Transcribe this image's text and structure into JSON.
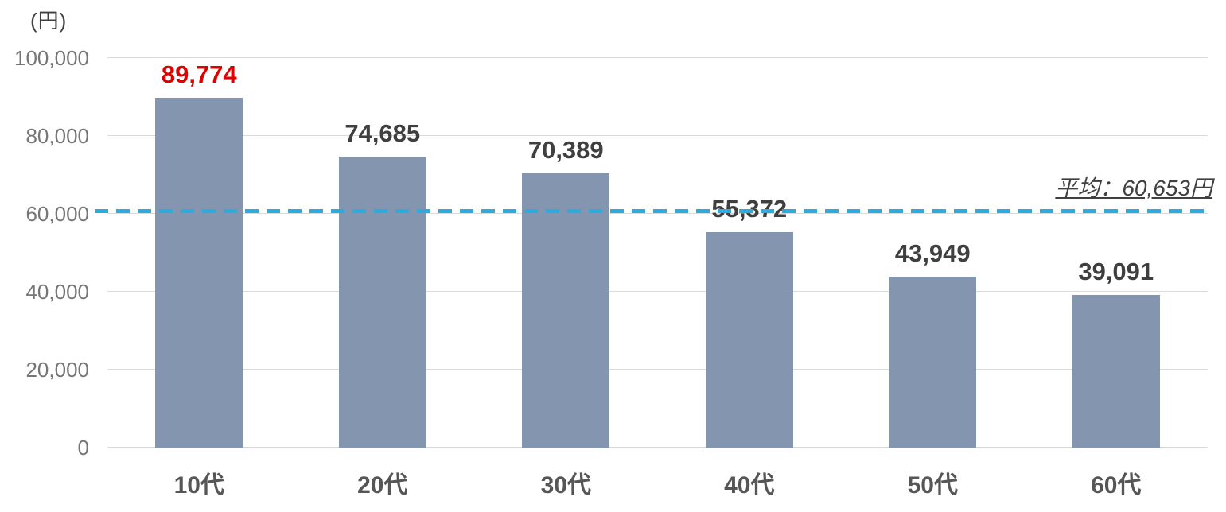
{
  "chart_data": {
    "type": "bar",
    "title": "",
    "unit_label": "(円)",
    "categories": [
      "10代",
      "20代",
      "30代",
      "40代",
      "50代",
      "60代"
    ],
    "values": [
      89774,
      74685,
      70389,
      55372,
      43949,
      39091
    ],
    "value_labels": [
      "89,774",
      "74,685",
      "70,389",
      "55,372",
      "43,949",
      "39,091"
    ],
    "highlight_index": 0,
    "ylim": [
      0,
      100000
    ],
    "ytick_values": [
      0,
      20000,
      40000,
      60000,
      80000,
      100000
    ],
    "ytick_labels": [
      "0",
      "20,000",
      "40,000",
      "60,000",
      "80,000",
      "100,000"
    ],
    "average": {
      "value": 60653,
      "label": "平均：60,653円"
    },
    "grid": "horizontal",
    "legend": "none",
    "colors": {
      "bar": "#8496af",
      "gridline": "#d9d9d9",
      "avg_line": "#29acdf",
      "highlight_value_label": "#e00000",
      "value_label": "#3f3f3f",
      "tick_label": "#767676",
      "category_label": "#565656",
      "annotation": "#404040"
    }
  }
}
